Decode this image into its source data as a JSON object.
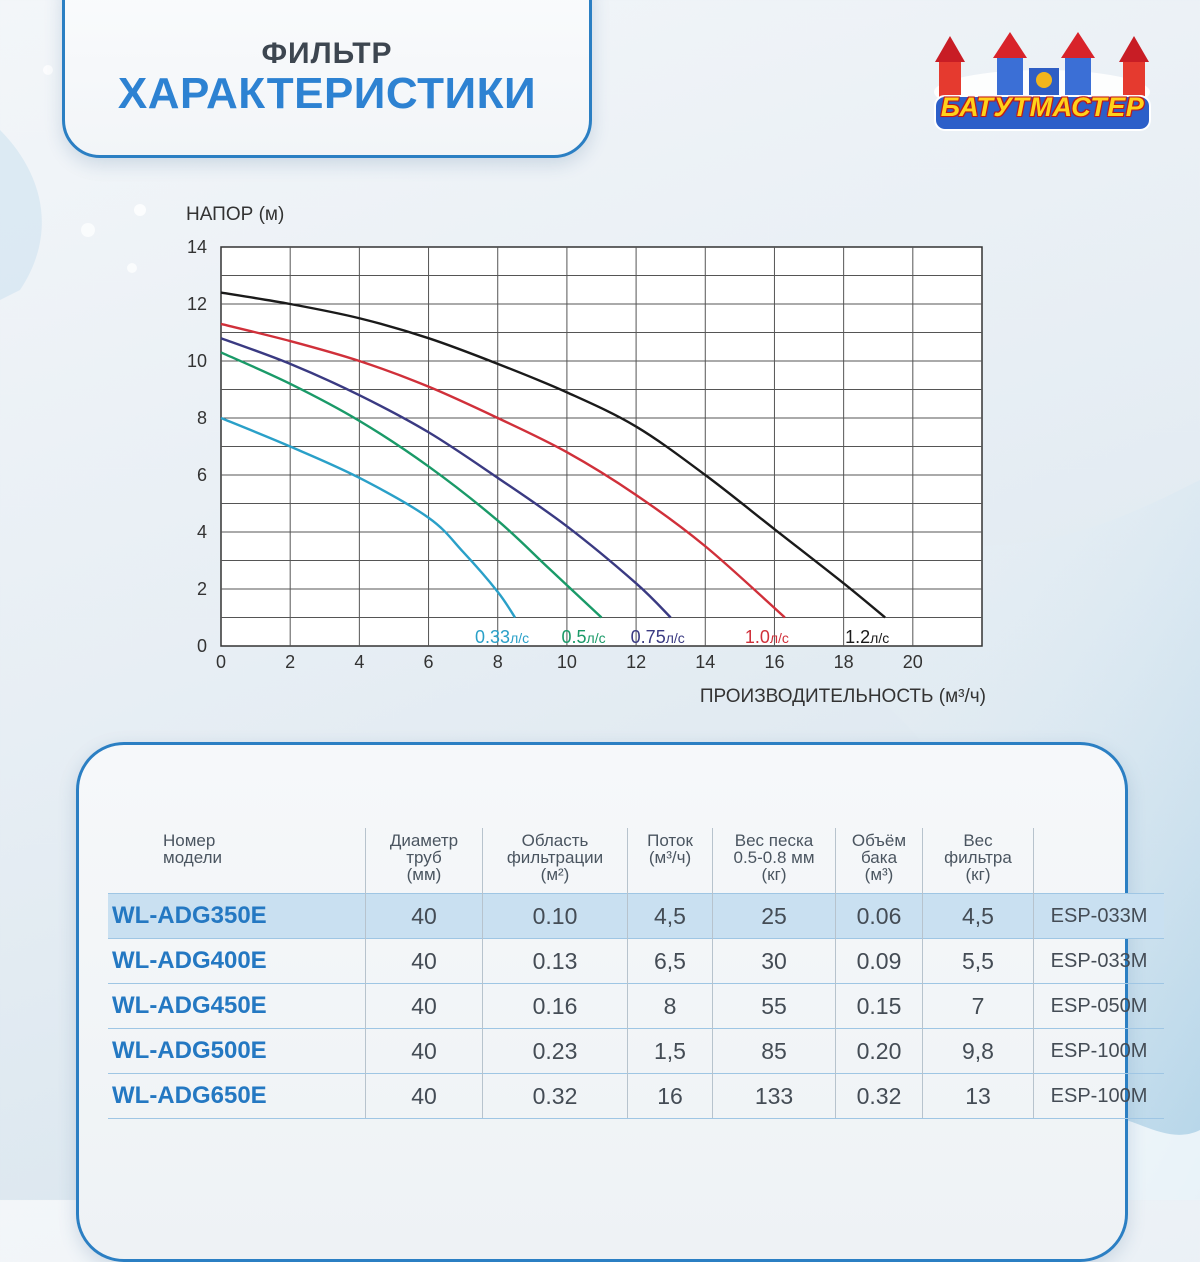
{
  "header": {
    "subtitle": "ФИЛЬТР",
    "title": "ХАРАКТЕРИСТИКИ"
  },
  "logo": {
    "text": "БАТУТМАСТЕР"
  },
  "colors": {
    "accent": "#2b7fc3",
    "title_blue": "#2d82d2",
    "curve_033": "#2aa0c8",
    "curve_05": "#1a9a68",
    "curve_075": "#3a3a82",
    "curve_10": "#d0303a",
    "curve_12": "#1a1a1a"
  },
  "chart_data": {
    "type": "line",
    "ylabel": "НАПОР (м)",
    "xlabel": "ПРОИЗВОДИТЕЛЬНОСТЬ (м³/ч)",
    "xlim": [
      0,
      22
    ],
    "ylim": [
      0,
      14
    ],
    "xticks": [
      0,
      2,
      4,
      6,
      8,
      10,
      12,
      14,
      16,
      18,
      20
    ],
    "yticks": [
      0,
      2,
      4,
      6,
      8,
      10,
      12,
      14
    ],
    "grid": true,
    "series": [
      {
        "name": "0.33",
        "unit": "л/с",
        "color": "#2aa0c8",
        "points": [
          [
            0,
            8.0
          ],
          [
            2,
            7.0
          ],
          [
            4,
            5.9
          ],
          [
            6,
            4.5
          ],
          [
            7,
            3.3
          ],
          [
            8,
            1.9
          ],
          [
            8.5,
            1.0
          ]
        ]
      },
      {
        "name": "0.5",
        "unit": "л/с",
        "color": "#1a9a68",
        "points": [
          [
            0,
            10.3
          ],
          [
            2,
            9.2
          ],
          [
            4,
            7.9
          ],
          [
            6,
            6.3
          ],
          [
            8,
            4.4
          ],
          [
            9.5,
            2.7
          ],
          [
            11,
            1.0
          ]
        ]
      },
      {
        "name": "0.75",
        "unit": "л/с",
        "color": "#3a3a82",
        "points": [
          [
            0,
            10.8
          ],
          [
            2,
            9.9
          ],
          [
            4,
            8.8
          ],
          [
            6,
            7.5
          ],
          [
            8,
            5.9
          ],
          [
            10,
            4.2
          ],
          [
            12,
            2.2
          ],
          [
            13,
            1.0
          ]
        ]
      },
      {
        "name": "1.0",
        "unit": "л/с",
        "color": "#d0303a",
        "points": [
          [
            0,
            11.3
          ],
          [
            2,
            10.7
          ],
          [
            4,
            10.0
          ],
          [
            6,
            9.1
          ],
          [
            8,
            8.0
          ],
          [
            10,
            6.8
          ],
          [
            12,
            5.3
          ],
          [
            14,
            3.5
          ],
          [
            16.3,
            1.0
          ]
        ]
      },
      {
        "name": "1.2",
        "unit": "л/с",
        "color": "#1a1a1a",
        "points": [
          [
            0,
            12.4
          ],
          [
            2,
            12.0
          ],
          [
            4,
            11.5
          ],
          [
            6,
            10.8
          ],
          [
            8,
            9.9
          ],
          [
            10,
            8.9
          ],
          [
            12,
            7.7
          ],
          [
            14,
            6.0
          ],
          [
            16,
            4.1
          ],
          [
            18,
            2.2
          ],
          [
            19.2,
            1.0
          ]
        ]
      }
    ]
  },
  "table": {
    "headers": [
      [
        "Номер",
        "модели"
      ],
      [
        "Диаметр",
        "труб",
        "(мм)"
      ],
      [
        "Область",
        "фильтрации",
        "(м²)"
      ],
      [
        "Поток",
        "(м³/ч)"
      ],
      [
        "Вес песка",
        "0.5-0.8 мм",
        "(кг)"
      ],
      [
        "Объём",
        "бака",
        "(м³)"
      ],
      [
        "Вес",
        "фильтра",
        "(кг)"
      ],
      [
        ""
      ]
    ],
    "rows": [
      [
        "WL-ADG350E",
        "40",
        "0.10",
        "4,5",
        "25",
        "0.06",
        "4,5",
        "ESP-033M"
      ],
      [
        "WL-ADG400E",
        "40",
        "0.13",
        "6,5",
        "30",
        "0.09",
        "5,5",
        "ESP-033M"
      ],
      [
        "WL-ADG450E",
        "40",
        "0.16",
        "8",
        "55",
        "0.15",
        "7",
        "ESP-050M"
      ],
      [
        "WL-ADG500E",
        "40",
        "0.23",
        "1,5",
        "85",
        "0.20",
        "9,8",
        "ESP-100M"
      ],
      [
        "WL-ADG650E",
        "40",
        "0.32",
        "16",
        "133",
        "0.32",
        "13",
        "ESP-100M"
      ]
    ]
  }
}
